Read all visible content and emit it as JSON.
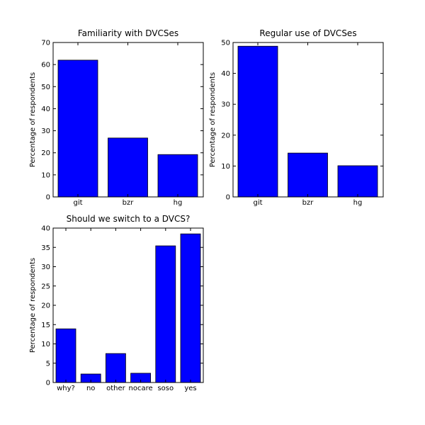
{
  "chart_data": [
    {
      "type": "bar",
      "title": "Familiarity with DVCSes",
      "xlabel": "",
      "ylabel": "Percentage of respondents",
      "categories": [
        "git",
        "bzr",
        "hg"
      ],
      "values": [
        62,
        26.7,
        19.2
      ],
      "ylim": [
        0,
        70
      ],
      "yticks": [
        0,
        10,
        20,
        30,
        40,
        50,
        60,
        70
      ],
      "color": "#0000ff",
      "grid": false
    },
    {
      "type": "bar",
      "title": "Regular use of DVCSes",
      "xlabel": "",
      "ylabel": "Percentage of respondents",
      "categories": [
        "git",
        "bzr",
        "hg"
      ],
      "values": [
        48.8,
        14.2,
        10.1
      ],
      "ylim": [
        0,
        50
      ],
      "yticks": [
        0,
        10,
        20,
        30,
        40,
        50
      ],
      "color": "#0000ff",
      "grid": false
    },
    {
      "type": "bar",
      "title": "Should we switch to a DVCS?",
      "xlabel": "",
      "ylabel": "Percentage of respondents",
      "categories": [
        "why?",
        "no",
        "other",
        "nocare",
        "soso",
        "yes"
      ],
      "values": [
        13.9,
        2.2,
        7.5,
        2.4,
        35.4,
        38.5
      ],
      "ylim": [
        0,
        40
      ],
      "yticks": [
        0,
        5,
        10,
        15,
        20,
        25,
        30,
        35,
        40
      ],
      "color": "#0000ff",
      "grid": false
    }
  ]
}
